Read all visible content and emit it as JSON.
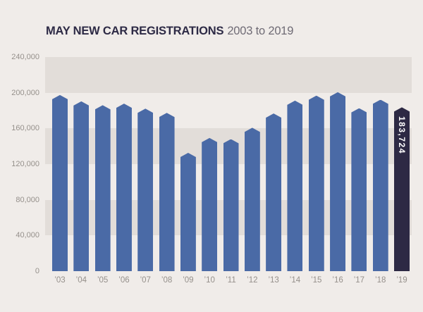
{
  "title": {
    "main": "MAY NEW CAR REGISTRATIONS",
    "sub": "2003 to 2019"
  },
  "colors": {
    "background": "#f0ece9",
    "band": "#e2ddd9",
    "bar": "#4a6aa6",
    "bar_highlight": "#2d2944",
    "title_text": "#2d2a45",
    "subtitle_text": "#6f6b75",
    "axis_text": "#95908b",
    "annotation_text": "#ffffff"
  },
  "chart_data": {
    "type": "bar",
    "title": "MAY NEW CAR REGISTRATIONS",
    "subtitle": "2003 to 2019",
    "categories": [
      "’03",
      "’04",
      "’05",
      "’06",
      "’07",
      "’08",
      "’09",
      "’10",
      "’11",
      "’12",
      "’13",
      "’14",
      "’15",
      "’16",
      "’17",
      "’18",
      "’19"
    ],
    "values": [
      197500,
      190400,
      186000,
      187800,
      182200,
      177500,
      132600,
      149300,
      148000,
      160800,
      176800,
      191200,
      196800,
      200600,
      182700,
      192200,
      183724
    ],
    "xlabel": "",
    "ylabel": "",
    "ylim": [
      0,
      240000
    ],
    "ytick_labels": [
      "240,000",
      "200,000",
      "160,000",
      "120,000",
      "80,000",
      "40,000",
      "0"
    ],
    "grid": "horizontal-bands-alternating",
    "legend": "none",
    "highlight": {
      "index": 16,
      "label": "183,724"
    }
  }
}
